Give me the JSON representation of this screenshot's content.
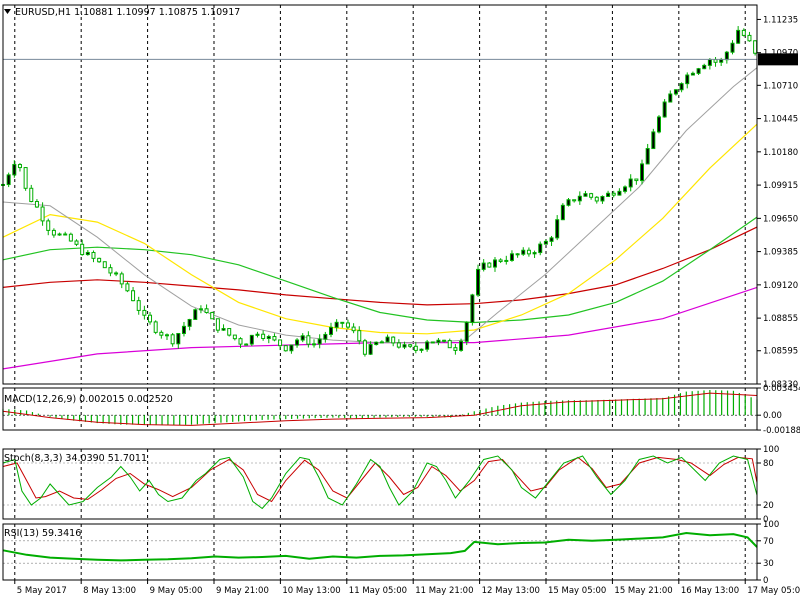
{
  "chart_data": [
    {
      "type": "candlestick",
      "title": "EURUSD,H1  1.10881 1.10997 1.10875 1.10917",
      "symbol": "EURUSD",
      "timeframe": "H1",
      "last_bar": {
        "open": 1.10881,
        "high": 1.10997,
        "low": 1.10875,
        "close": 1.10917
      },
      "ylim": [
        1.0833,
        1.1135
      ],
      "y_ticks": [
        "1.11235",
        "1.10970",
        "1.10710",
        "1.10445",
        "1.10180",
        "1.09915",
        "1.09650",
        "1.09385",
        "1.09120",
        "1.08855",
        "1.08595",
        "1.08330"
      ],
      "current_price": "1.10917",
      "x_ticks": [
        "5 May 2017",
        "8 May 13:00",
        "9 May 05:00",
        "9 May 21:00",
        "10 May 13:00",
        "11 May 05:00",
        "11 May 21:00",
        "12 May 13:00",
        "15 May 05:00",
        "15 May 21:00",
        "16 May 13:00",
        "17 May 05:00"
      ],
      "close_path": [
        [
          0,
          1.0992
        ],
        [
          6,
          1.1015
        ],
        [
          10,
          1.0985
        ],
        [
          14,
          1.0975
        ],
        [
          20,
          1.0955
        ],
        [
          28,
          1.0948
        ],
        [
          34,
          1.0938
        ],
        [
          42,
          1.0928
        ],
        [
          48,
          1.0918
        ],
        [
          54,
          1.0905
        ],
        [
          60,
          1.0885
        ],
        [
          66,
          1.0875
        ],
        [
          72,
          1.0868
        ],
        [
          78,
          1.0882
        ],
        [
          84,
          1.0895
        ],
        [
          90,
          1.088
        ],
        [
          96,
          1.0872
        ],
        [
          102,
          1.0865
        ],
        [
          108,
          1.0875
        ],
        [
          114,
          1.0868
        ],
        [
          120,
          1.0862
        ],
        [
          126,
          1.087
        ],
        [
          132,
          1.0865
        ],
        [
          138,
          1.0875
        ],
        [
          144,
          1.0882
        ],
        [
          150,
          1.0872
        ],
        [
          154,
          1.0858
        ],
        [
          158,
          1.0865
        ],
        [
          164,
          1.0868
        ],
        [
          170,
          1.0862
        ],
        [
          176,
          1.086
        ],
        [
          180,
          1.0868
        ],
        [
          186,
          1.0866
        ],
        [
          192,
          1.0862
        ],
        [
          196,
          1.0875
        ],
        [
          198,
          1.0895
        ],
        [
          202,
          1.0925
        ],
        [
          208,
          1.093
        ],
        [
          216,
          1.0935
        ],
        [
          224,
          1.0938
        ],
        [
          232,
          1.0948
        ],
        [
          238,
          1.0975
        ],
        [
          246,
          1.0985
        ],
        [
          252,
          1.098
        ],
        [
          258,
          1.0985
        ],
        [
          266,
          1.0995
        ],
        [
          270,
          1.0998
        ],
        [
          276,
          1.1035
        ],
        [
          282,
          1.106
        ],
        [
          288,
          1.1075
        ],
        [
          294,
          1.1085
        ],
        [
          300,
          1.1092
        ],
        [
          304,
          1.1088
        ],
        [
          308,
          1.11
        ],
        [
          312,
          1.1115
        ],
        [
          316,
          1.1108
        ],
        [
          320,
          1.1092
        ]
      ],
      "sma_gray": [
        [
          0,
          1.0978
        ],
        [
          20,
          1.0975
        ],
        [
          40,
          1.095
        ],
        [
          60,
          1.092
        ],
        [
          80,
          1.0895
        ],
        [
          100,
          1.088
        ],
        [
          120,
          1.0872
        ],
        [
          140,
          1.0868
        ],
        [
          160,
          1.0866
        ],
        [
          180,
          1.0866
        ],
        [
          196,
          1.0868
        ],
        [
          210,
          1.089
        ],
        [
          230,
          1.092
        ],
        [
          250,
          1.0955
        ],
        [
          270,
          1.099
        ],
        [
          290,
          1.1035
        ],
        [
          310,
          1.107
        ],
        [
          320,
          1.1085
        ]
      ],
      "sma_yellow": [
        [
          0,
          1.095
        ],
        [
          20,
          1.0968
        ],
        [
          40,
          1.0962
        ],
        [
          60,
          1.0945
        ],
        [
          80,
          1.092
        ],
        [
          100,
          1.0898
        ],
        [
          120,
          1.0885
        ],
        [
          140,
          1.0878
        ],
        [
          160,
          1.0874
        ],
        [
          180,
          1.0873
        ],
        [
          200,
          1.0876
        ],
        [
          220,
          1.0888
        ],
        [
          240,
          1.0905
        ],
        [
          260,
          1.0932
        ],
        [
          280,
          1.0965
        ],
        [
          300,
          1.1005
        ],
        [
          320,
          1.104
        ]
      ],
      "sma_green": [
        [
          0,
          1.0932
        ],
        [
          20,
          1.094
        ],
        [
          40,
          1.0942
        ],
        [
          60,
          1.094
        ],
        [
          80,
          1.0936
        ],
        [
          100,
          1.0928
        ],
        [
          120,
          1.0915
        ],
        [
          140,
          1.0902
        ],
        [
          160,
          1.089
        ],
        [
          180,
          1.0884
        ],
        [
          200,
          1.0882
        ],
        [
          220,
          1.0884
        ],
        [
          240,
          1.0888
        ],
        [
          260,
          1.0898
        ],
        [
          280,
          1.0915
        ],
        [
          300,
          1.094
        ],
        [
          320,
          1.0966
        ]
      ],
      "sma_red": [
        [
          0,
          1.091
        ],
        [
          20,
          1.0914
        ],
        [
          40,
          1.0916
        ],
        [
          60,
          1.0914
        ],
        [
          80,
          1.0911
        ],
        [
          100,
          1.0908
        ],
        [
          120,
          1.0904
        ],
        [
          140,
          1.0901
        ],
        [
          160,
          1.0898
        ],
        [
          180,
          1.0896
        ],
        [
          200,
          1.0897
        ],
        [
          220,
          1.09
        ],
        [
          240,
          1.0905
        ],
        [
          260,
          1.0912
        ],
        [
          280,
          1.0925
        ],
        [
          300,
          1.094
        ],
        [
          320,
          1.0958
        ]
      ],
      "sma_magenta": [
        [
          0,
          1.0845
        ],
        [
          40,
          1.0857
        ],
        [
          80,
          1.0862
        ],
        [
          120,
          1.0864
        ],
        [
          160,
          1.0866
        ],
        [
          200,
          1.0866
        ],
        [
          240,
          1.0872
        ],
        [
          280,
          1.0885
        ],
        [
          320,
          1.091
        ]
      ],
      "colors": {
        "up": "#00ad00",
        "down": "#00ad00",
        "sma_gray": "#a0a0a0",
        "sma_yellow": "#ffe600",
        "sma_green": "#22c322",
        "sma_red": "#c80000",
        "sma_magenta": "#d900d9"
      }
    },
    {
      "type": "macd",
      "title": "MACD(12,26,9) 0.002015 0.002520",
      "ylim": [
        -0.00188,
        0.003454
      ],
      "y_ticks": [
        "0.003454",
        "0.00",
        "-0.001885"
      ],
      "histogram": [
        [
          0,
          0.0008
        ],
        [
          10,
          0.0006
        ],
        [
          20,
          -0.0002
        ],
        [
          30,
          -0.0007
        ],
        [
          40,
          -0.001
        ],
        [
          50,
          -0.0012
        ],
        [
          60,
          -0.0012
        ],
        [
          70,
          -0.0013
        ],
        [
          80,
          -0.0012
        ],
        [
          90,
          -0.001
        ],
        [
          100,
          -0.0008
        ],
        [
          110,
          -0.0006
        ],
        [
          120,
          -0.0005
        ],
        [
          130,
          -0.0004
        ],
        [
          140,
          -0.0003
        ],
        [
          150,
          -0.0004
        ],
        [
          160,
          -0.0003
        ],
        [
          170,
          -0.0002
        ],
        [
          180,
          -0.0002
        ],
        [
          190,
          -0.0003
        ],
        [
          200,
          0.0005
        ],
        [
          210,
          0.0012
        ],
        [
          220,
          0.0016
        ],
        [
          230,
          0.0018
        ],
        [
          240,
          0.0019
        ],
        [
          250,
          0.0019
        ],
        [
          260,
          0.002
        ],
        [
          270,
          0.0021
        ],
        [
          280,
          0.0022
        ],
        [
          290,
          0.003
        ],
        [
          300,
          0.0032
        ],
        [
          310,
          0.0031
        ],
        [
          320,
          0.002
        ]
      ],
      "signal": [
        [
          0,
          0.0005
        ],
        [
          20,
          -0.0003
        ],
        [
          40,
          -0.0009
        ],
        [
          60,
          -0.0012
        ],
        [
          80,
          -0.0013
        ],
        [
          100,
          -0.001
        ],
        [
          120,
          -0.0007
        ],
        [
          140,
          -0.0005
        ],
        [
          160,
          -0.0004
        ],
        [
          180,
          -0.0003
        ],
        [
          200,
          0.0
        ],
        [
          220,
          0.0012
        ],
        [
          240,
          0.0017
        ],
        [
          260,
          0.0019
        ],
        [
          280,
          0.0021
        ],
        [
          300,
          0.0028
        ],
        [
          320,
          0.0025
        ]
      ],
      "colors": {
        "histogram": "#00ad00",
        "signal": "#c80000"
      }
    },
    {
      "type": "stochastic",
      "title": "Stoch(8,3,3) 34.0390 51.7011",
      "ylim": [
        0,
        100
      ],
      "y_ticks": [
        "100",
        "80",
        "20",
        "0"
      ],
      "main": [
        [
          0,
          80
        ],
        [
          5,
          85
        ],
        [
          8,
          40
        ],
        [
          12,
          20
        ],
        [
          16,
          30
        ],
        [
          20,
          50
        ],
        [
          24,
          35
        ],
        [
          28,
          20
        ],
        [
          34,
          25
        ],
        [
          40,
          45
        ],
        [
          46,
          60
        ],
        [
          50,
          75
        ],
        [
          54,
          60
        ],
        [
          58,
          40
        ],
        [
          62,
          55
        ],
        [
          66,
          35
        ],
        [
          70,
          25
        ],
        [
          76,
          30
        ],
        [
          82,
          55
        ],
        [
          86,
          65
        ],
        [
          92,
          85
        ],
        [
          96,
          88
        ],
        [
          102,
          60
        ],
        [
          106,
          25
        ],
        [
          110,
          15
        ],
        [
          114,
          30
        ],
        [
          120,
          65
        ],
        [
          126,
          88
        ],
        [
          130,
          85
        ],
        [
          134,
          60
        ],
        [
          138,
          30
        ],
        [
          144,
          20
        ],
        [
          150,
          50
        ],
        [
          156,
          85
        ],
        [
          160,
          75
        ],
        [
          164,
          45
        ],
        [
          168,
          20
        ],
        [
          174,
          40
        ],
        [
          180,
          80
        ],
        [
          184,
          75
        ],
        [
          188,
          55
        ],
        [
          192,
          30
        ],
        [
          198,
          55
        ],
        [
          204,
          85
        ],
        [
          210,
          90
        ],
        [
          216,
          70
        ],
        [
          220,
          45
        ],
        [
          226,
          30
        ],
        [
          232,
          55
        ],
        [
          238,
          80
        ],
        [
          246,
          90
        ],
        [
          252,
          60
        ],
        [
          258,
          35
        ],
        [
          264,
          55
        ],
        [
          270,
          85
        ],
        [
          276,
          90
        ],
        [
          282,
          80
        ],
        [
          288,
          88
        ],
        [
          292,
          75
        ],
        [
          298,
          55
        ],
        [
          304,
          80
        ],
        [
          310,
          90
        ],
        [
          316,
          85
        ],
        [
          320,
          34
        ]
      ],
      "signal": [
        [
          0,
          75
        ],
        [
          6,
          80
        ],
        [
          10,
          55
        ],
        [
          14,
          30
        ],
        [
          18,
          32
        ],
        [
          24,
          40
        ],
        [
          30,
          30
        ],
        [
          36,
          28
        ],
        [
          42,
          42
        ],
        [
          48,
          58
        ],
        [
          54,
          65
        ],
        [
          60,
          50
        ],
        [
          66,
          42
        ],
        [
          72,
          32
        ],
        [
          80,
          45
        ],
        [
          88,
          70
        ],
        [
          96,
          85
        ],
        [
          102,
          70
        ],
        [
          108,
          35
        ],
        [
          114,
          25
        ],
        [
          120,
          55
        ],
        [
          128,
          84
        ],
        [
          134,
          70
        ],
        [
          140,
          40
        ],
        [
          146,
          30
        ],
        [
          152,
          55
        ],
        [
          158,
          80
        ],
        [
          164,
          60
        ],
        [
          170,
          35
        ],
        [
          176,
          45
        ],
        [
          182,
          75
        ],
        [
          188,
          62
        ],
        [
          194,
          40
        ],
        [
          200,
          55
        ],
        [
          206,
          82
        ],
        [
          212,
          85
        ],
        [
          218,
          62
        ],
        [
          224,
          40
        ],
        [
          230,
          45
        ],
        [
          236,
          70
        ],
        [
          244,
          88
        ],
        [
          250,
          72
        ],
        [
          256,
          45
        ],
        [
          262,
          50
        ],
        [
          270,
          80
        ],
        [
          278,
          88
        ],
        [
          286,
          85
        ],
        [
          292,
          80
        ],
        [
          300,
          62
        ],
        [
          306,
          78
        ],
        [
          312,
          88
        ],
        [
          318,
          86
        ],
        [
          320,
          52
        ]
      ],
      "colors": {
        "main": "#00ad00",
        "signal": "#c80000"
      }
    },
    {
      "type": "line",
      "title": "RSI(13) 59.3416",
      "ylim": [
        0,
        100
      ],
      "y_ticks": [
        "100",
        "70",
        "30",
        "0"
      ],
      "values": [
        [
          0,
          53
        ],
        [
          10,
          45
        ],
        [
          20,
          40
        ],
        [
          30,
          38
        ],
        [
          40,
          36
        ],
        [
          50,
          35
        ],
        [
          60,
          36
        ],
        [
          70,
          37
        ],
        [
          80,
          39
        ],
        [
          90,
          42
        ],
        [
          100,
          40
        ],
        [
          110,
          41
        ],
        [
          120,
          43
        ],
        [
          130,
          38
        ],
        [
          140,
          42
        ],
        [
          150,
          40
        ],
        [
          160,
          43
        ],
        [
          170,
          44
        ],
        [
          180,
          46
        ],
        [
          190,
          48
        ],
        [
          196,
          52
        ],
        [
          200,
          68
        ],
        [
          210,
          64
        ],
        [
          220,
          66
        ],
        [
          230,
          67
        ],
        [
          240,
          72
        ],
        [
          250,
          70
        ],
        [
          260,
          72
        ],
        [
          270,
          74
        ],
        [
          280,
          76
        ],
        [
          290,
          84
        ],
        [
          300,
          80
        ],
        [
          310,
          82
        ],
        [
          316,
          76
        ],
        [
          320,
          59
        ]
      ],
      "colors": {
        "line": "#00ad00"
      }
    }
  ]
}
